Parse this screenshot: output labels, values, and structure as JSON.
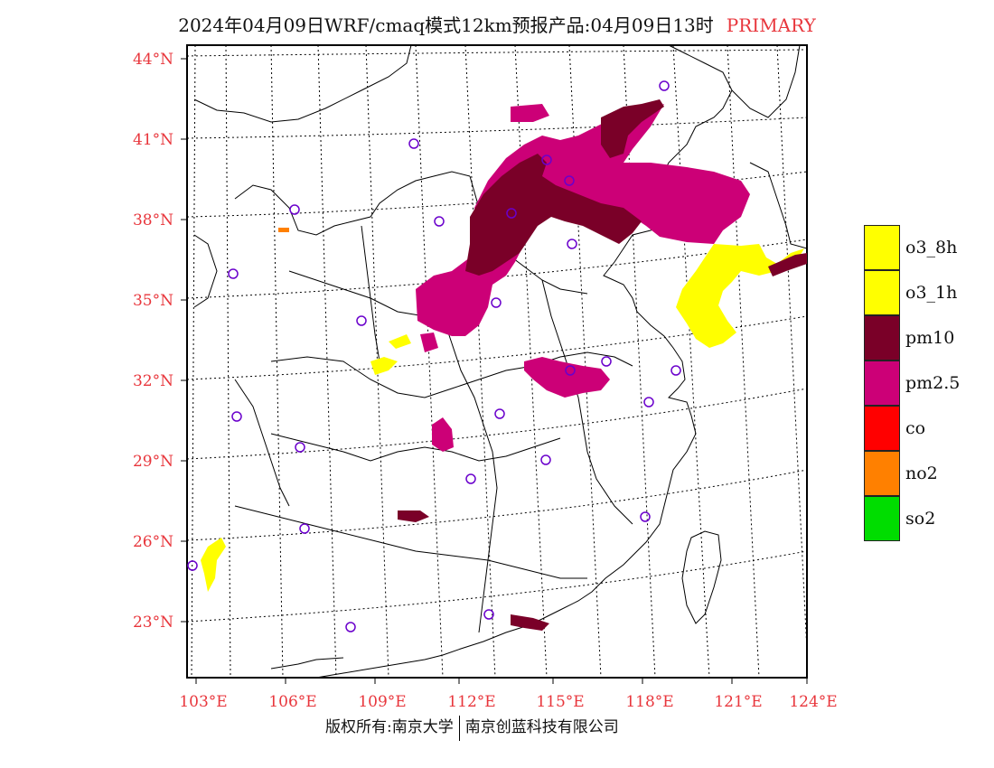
{
  "header": {
    "title": "2024年04月09日WRF/cmaq模式12km预报产品:04月09日13时",
    "tag": "PRIMARY"
  },
  "footer": {
    "left": "版权所有:南京大学",
    "right": "南京创蓝科技有限公司"
  },
  "axes": {
    "lat_labels": [
      "44°N",
      "41°N",
      "38°N",
      "35°N",
      "32°N",
      "29°N",
      "26°N",
      "23°N"
    ],
    "lon_labels": [
      "103°E",
      "106°E",
      "109°E",
      "112°E",
      "115°E",
      "118°E",
      "121°E",
      "124°E"
    ]
  },
  "colors": {
    "o3_8h": "#ffff00",
    "o3_1h": "#ffff00",
    "pm10": "#7a0028",
    "pm2_5": "#cc0077",
    "co": "#ff0000",
    "no2": "#ff8000",
    "so2": "#00dd00",
    "tick": "#e8363c",
    "station": "#6a00cc"
  },
  "legend": [
    {
      "key": "o3_8h",
      "label": "o3_8h",
      "color": "#ffff00"
    },
    {
      "key": "o3_1h",
      "label": "o3_1h",
      "color": "#ffff00"
    },
    {
      "key": "pm10",
      "label": "pm10",
      "color": "#7a0028"
    },
    {
      "key": "pm2_5",
      "label": "pm2.5",
      "color": "#cc0077"
    },
    {
      "key": "co",
      "label": "co",
      "color": "#ff0000"
    },
    {
      "key": "no2",
      "label": "no2",
      "color": "#ff8000"
    },
    {
      "key": "so2",
      "label": "so2",
      "color": "#00dd00"
    }
  ]
}
